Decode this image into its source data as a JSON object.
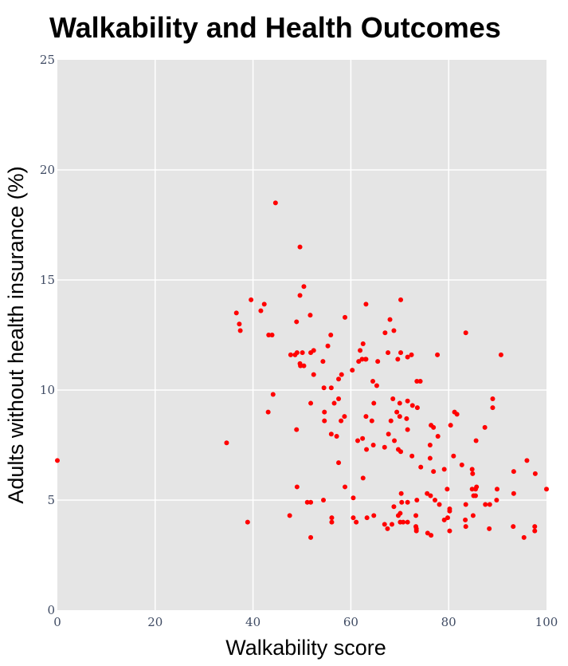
{
  "chart_data": {
    "type": "scatter",
    "title": "Walkability and Health Outcomes",
    "xlabel": "Walkability score",
    "ylabel": "Adults without health insurance (%)",
    "xlim": [
      0,
      100
    ],
    "ylim": [
      0,
      25
    ],
    "x_ticks": [
      "0",
      "20",
      "40",
      "60",
      "80",
      "100"
    ],
    "y_ticks": [
      "0",
      "5",
      "10",
      "15",
      "20",
      "25"
    ],
    "grid": true,
    "legend": "none",
    "colors": {
      "marker": "#ff0000",
      "plot_background": "#e5e5e5",
      "grid": "#ffffff"
    },
    "points": [
      [
        0,
        6.8
      ],
      [
        34.6,
        7.6
      ],
      [
        36.6,
        13.5
      ],
      [
        37.2,
        13.0
      ],
      [
        37.4,
        12.7
      ],
      [
        38.9,
        4.0
      ],
      [
        39.6,
        14.1
      ],
      [
        41.6,
        13.6
      ],
      [
        42.3,
        13.9
      ],
      [
        43.1,
        9.0
      ],
      [
        43.2,
        12.5
      ],
      [
        43.9,
        12.5
      ],
      [
        44.1,
        9.8
      ],
      [
        44.6,
        18.5
      ],
      [
        47.5,
        4.3
      ],
      [
        47.7,
        11.6
      ],
      [
        48.6,
        11.6
      ],
      [
        48.9,
        13.1
      ],
      [
        48.9,
        8.2
      ],
      [
        49.0,
        5.6
      ],
      [
        49.0,
        11.7
      ],
      [
        49.6,
        16.5
      ],
      [
        49.6,
        14.3
      ],
      [
        49.6,
        11.2
      ],
      [
        49.7,
        11.1
      ],
      [
        50.1,
        11.7
      ],
      [
        50.4,
        11.1
      ],
      [
        50.4,
        14.7
      ],
      [
        51.1,
        4.9
      ],
      [
        51.7,
        13.4
      ],
      [
        51.8,
        4.9
      ],
      [
        51.8,
        9.4
      ],
      [
        51.8,
        3.3
      ],
      [
        51.8,
        11.7
      ],
      [
        52.4,
        11.8
      ],
      [
        52.4,
        10.7
      ],
      [
        54.3,
        11.3
      ],
      [
        54.4,
        5.0
      ],
      [
        54.5,
        10.1
      ],
      [
        54.6,
        9.0
      ],
      [
        54.6,
        8.6
      ],
      [
        55.3,
        12.0
      ],
      [
        55.9,
        12.5
      ],
      [
        56.0,
        10.1
      ],
      [
        56.0,
        8.0
      ],
      [
        56.1,
        4.2
      ],
      [
        56.1,
        4.0
      ],
      [
        56.6,
        9.4
      ],
      [
        57.1,
        7.9
      ],
      [
        57.5,
        9.6
      ],
      [
        57.5,
        6.7
      ],
      [
        57.5,
        10.5
      ],
      [
        58.0,
        8.6
      ],
      [
        58.1,
        10.7
      ],
      [
        58.7,
        8.8
      ],
      [
        58.8,
        5.6
      ],
      [
        58.8,
        13.3
      ],
      [
        60.3,
        10.9
      ],
      [
        60.5,
        5.1
      ],
      [
        60.5,
        4.2
      ],
      [
        61.1,
        4.0
      ],
      [
        61.4,
        7.7
      ],
      [
        61.6,
        11.3
      ],
      [
        61.9,
        11.8
      ],
      [
        62.3,
        11.4
      ],
      [
        62.4,
        7.8
      ],
      [
        62.5,
        6.0
      ],
      [
        62.5,
        12.1
      ],
      [
        63.0,
        11.4
      ],
      [
        63.1,
        11.4
      ],
      [
        63.1,
        8.8
      ],
      [
        63.1,
        13.9
      ],
      [
        63.2,
        7.3
      ],
      [
        63.3,
        4.2
      ],
      [
        64.3,
        8.6
      ],
      [
        64.5,
        10.4
      ],
      [
        64.6,
        7.5
      ],
      [
        64.7,
        9.4
      ],
      [
        64.7,
        4.3
      ],
      [
        65.3,
        10.2
      ],
      [
        65.5,
        11.3
      ],
      [
        66.9,
        3.9
      ],
      [
        66.9,
        7.4
      ],
      [
        67.0,
        12.6
      ],
      [
        67.5,
        3.7
      ],
      [
        67.6,
        11.7
      ],
      [
        67.7,
        8.0
      ],
      [
        68.0,
        13.2
      ],
      [
        68.2,
        8.6
      ],
      [
        68.4,
        3.9
      ],
      [
        68.6,
        9.6
      ],
      [
        68.8,
        4.7
      ],
      [
        68.8,
        12.7
      ],
      [
        68.9,
        7.7
      ],
      [
        69.4,
        9.0
      ],
      [
        69.6,
        11.4
      ],
      [
        69.7,
        4.3
      ],
      [
        69.7,
        7.3
      ],
      [
        70.0,
        9.4
      ],
      [
        70.0,
        8.8
      ],
      [
        70.1,
        4.4
      ],
      [
        70.1,
        4.0
      ],
      [
        70.2,
        11.7
      ],
      [
        70.2,
        7.2
      ],
      [
        70.2,
        14.1
      ],
      [
        70.3,
        5.3
      ],
      [
        70.4,
        4.9
      ],
      [
        70.7,
        4.0
      ],
      [
        71.4,
        8.7
      ],
      [
        71.6,
        9.5
      ],
      [
        71.6,
        8.2
      ],
      [
        71.6,
        4.0
      ],
      [
        71.6,
        11.5
      ],
      [
        71.6,
        4.9
      ],
      [
        72.4,
        11.6
      ],
      [
        72.5,
        7.0
      ],
      [
        72.6,
        9.3
      ],
      [
        73.3,
        4.3
      ],
      [
        73.3,
        3.8
      ],
      [
        73.4,
        3.6
      ],
      [
        73.4,
        3.7
      ],
      [
        73.5,
        10.4
      ],
      [
        73.5,
        5.0
      ],
      [
        73.6,
        9.2
      ],
      [
        74.2,
        10.4
      ],
      [
        74.3,
        6.5
      ],
      [
        75.6,
        5.3
      ],
      [
        75.7,
        3.5
      ],
      [
        76.2,
        7.5
      ],
      [
        76.2,
        6.9
      ],
      [
        76.3,
        5.2
      ],
      [
        76.4,
        8.4
      ],
      [
        76.4,
        3.4
      ],
      [
        76.9,
        6.3
      ],
      [
        76.9,
        8.3
      ],
      [
        77.2,
        5.0
      ],
      [
        77.7,
        11.6
      ],
      [
        77.8,
        7.9
      ],
      [
        78.1,
        4.8
      ],
      [
        79.1,
        6.4
      ],
      [
        79.1,
        4.1
      ],
      [
        79.7,
        5.5
      ],
      [
        79.8,
        4.2
      ],
      [
        80.2,
        4.6
      ],
      [
        80.2,
        4.5
      ],
      [
        80.2,
        3.6
      ],
      [
        80.4,
        8.4
      ],
      [
        81.0,
        7.0
      ],
      [
        81.2,
        9.0
      ],
      [
        81.7,
        8.9
      ],
      [
        82.7,
        6.6
      ],
      [
        83.4,
        4.1
      ],
      [
        83.5,
        3.8
      ],
      [
        83.5,
        4.8
      ],
      [
        83.5,
        12.6
      ],
      [
        84.8,
        6.4
      ],
      [
        84.8,
        5.5
      ],
      [
        84.9,
        6.2
      ],
      [
        85.0,
        4.3
      ],
      [
        85.1,
        5.2
      ],
      [
        85.5,
        5.5
      ],
      [
        85.5,
        5.2
      ],
      [
        85.6,
        7.7
      ],
      [
        85.7,
        5.6
      ],
      [
        87.4,
        8.3
      ],
      [
        87.5,
        4.8
      ],
      [
        88.3,
        3.7
      ],
      [
        88.4,
        4.8
      ],
      [
        89.0,
        9.2
      ],
      [
        89.0,
        9.6
      ],
      [
        89.8,
        5.0
      ],
      [
        89.9,
        5.5
      ],
      [
        90.7,
        11.6
      ],
      [
        93.2,
        3.8
      ],
      [
        93.3,
        6.3
      ],
      [
        93.3,
        5.3
      ],
      [
        95.4,
        3.3
      ],
      [
        96.0,
        6.8
      ],
      [
        97.6,
        3.6
      ],
      [
        97.6,
        3.8
      ],
      [
        97.7,
        6.2
      ],
      [
        100,
        5.5
      ]
    ]
  }
}
